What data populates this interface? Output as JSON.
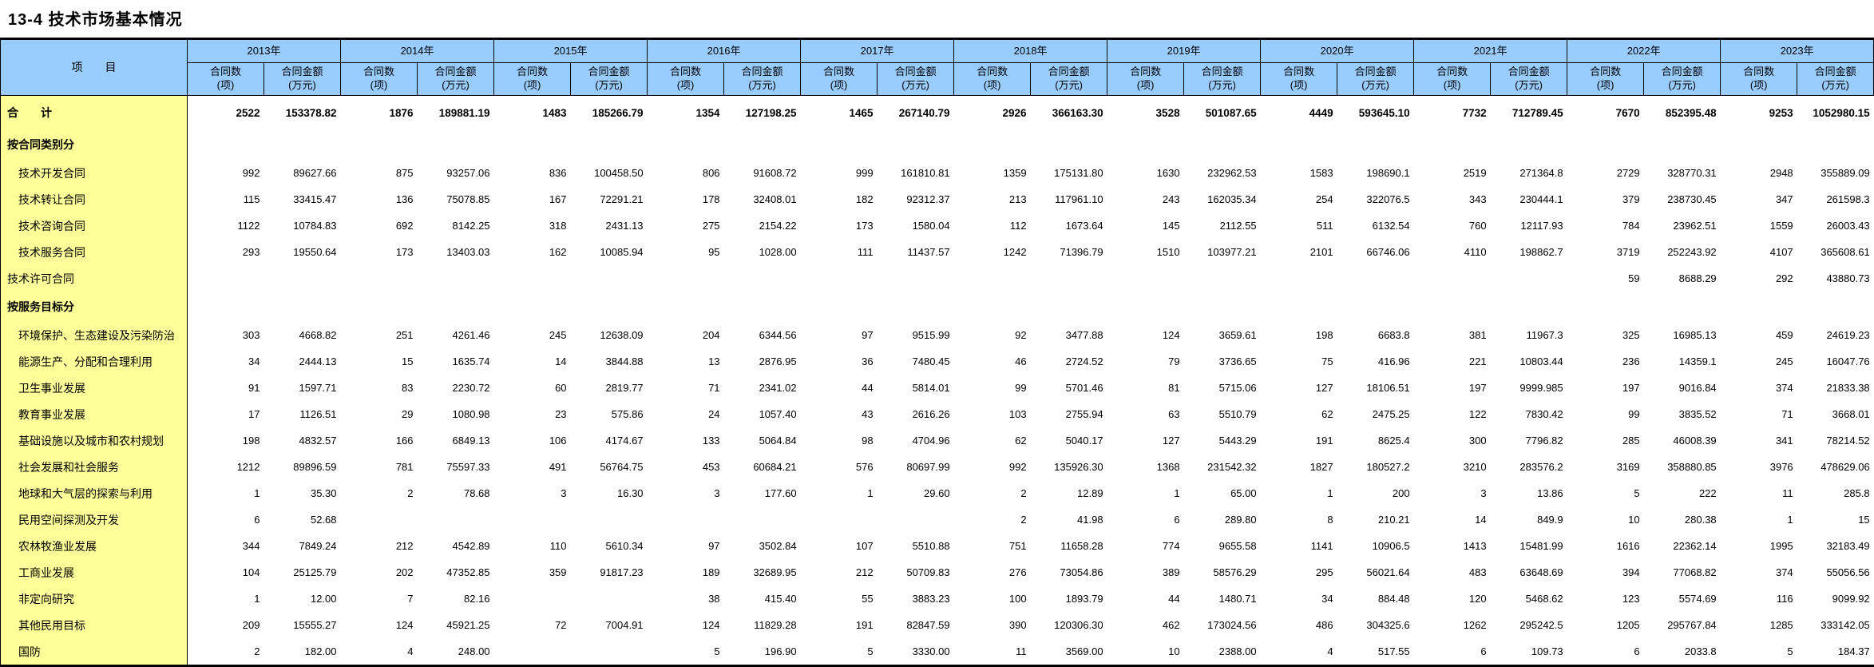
{
  "title": "13-4  技术市场基本情况",
  "colors": {
    "header_bg": "#99CCFF",
    "label_bg": "#FFFF99",
    "border": "#000000"
  },
  "table": {
    "item_header": "项　　目",
    "years": [
      "2013年",
      "2014年",
      "2015年",
      "2016年",
      "2017年",
      "2018年",
      "2019年",
      "2020年",
      "2021年",
      "2022年",
      "2023年"
    ],
    "count_label": "合同数",
    "count_unit": "(项)",
    "amount_label": "合同金额",
    "amount_unit": "(万元)",
    "rows": [
      {
        "label": "合　　计",
        "style": "total",
        "cells": [
          "2522",
          "153378.82",
          "1876",
          "189881.19",
          "1483",
          "185266.79",
          "1354",
          "127198.25",
          "1465",
          "267140.79",
          "2926",
          "366163.30",
          "3528",
          "501087.65",
          "4449",
          "593645.10",
          "7732",
          "712789.45",
          "7670",
          "852395.48",
          "9253",
          "1052980.15"
        ]
      },
      {
        "label": "按合同类别分",
        "style": "group",
        "cells": []
      },
      {
        "label": "技术开发合同",
        "style": "item",
        "cells": [
          "992",
          "89627.66",
          "875",
          "93257.06",
          "836",
          "100458.50",
          "806",
          "91608.72",
          "999",
          "161810.81",
          "1359",
          "175131.80",
          "1630",
          "232962.53",
          "1583",
          "198690.1",
          "2519",
          "271364.8",
          "2729",
          "328770.31",
          "2948",
          "355889.09"
        ]
      },
      {
        "label": "技术转让合同",
        "style": "item",
        "cells": [
          "115",
          "33415.47",
          "136",
          "75078.85",
          "167",
          "72291.21",
          "178",
          "32408.01",
          "182",
          "92312.37",
          "213",
          "117961.10",
          "243",
          "162035.34",
          "254",
          "322076.5",
          "343",
          "230444.1",
          "379",
          "238730.45",
          "347",
          "261598.3"
        ]
      },
      {
        "label": "技术咨询合同",
        "style": "item",
        "cells": [
          "1122",
          "10784.83",
          "692",
          "8142.25",
          "318",
          "2431.13",
          "275",
          "2154.22",
          "173",
          "1580.04",
          "112",
          "1673.64",
          "145",
          "2112.55",
          "511",
          "6132.54",
          "760",
          "12117.93",
          "784",
          "23962.51",
          "1559",
          "26003.43"
        ]
      },
      {
        "label": "技术服务合同",
        "style": "item",
        "cells": [
          "293",
          "19550.64",
          "173",
          "13403.03",
          "162",
          "10085.94",
          "95",
          "1028.00",
          "111",
          "11437.57",
          "1242",
          "71396.79",
          "1510",
          "103977.21",
          "2101",
          "66746.06",
          "4110",
          "198862.7",
          "3719",
          "252243.92",
          "4107",
          "365608.61"
        ]
      },
      {
        "label": "技术许可合同",
        "style": "flush",
        "cells": [
          "",
          "",
          "",
          "",
          "",
          "",
          "",
          "",
          "",
          "",
          "",
          "",
          "",
          "",
          "",
          "",
          "",
          "",
          "59",
          "8688.29",
          "292",
          "43880.73"
        ]
      },
      {
        "label": "按服务目标分",
        "style": "group",
        "cells": []
      },
      {
        "label": "环境保护、生态建设及污染防治",
        "style": "item",
        "cells": [
          "303",
          "4668.82",
          "251",
          "4261.46",
          "245",
          "12638.09",
          "204",
          "6344.56",
          "97",
          "9515.99",
          "92",
          "3477.88",
          "124",
          "3659.61",
          "198",
          "6683.8",
          "381",
          "11967.3",
          "325",
          "16985.13",
          "459",
          "24619.23"
        ]
      },
      {
        "label": "能源生产、分配和合理利用",
        "style": "item",
        "cells": [
          "34",
          "2444.13",
          "15",
          "1635.74",
          "14",
          "3844.88",
          "13",
          "2876.95",
          "36",
          "7480.45",
          "46",
          "2724.52",
          "79",
          "3736.65",
          "75",
          "416.96",
          "221",
          "10803.44",
          "236",
          "14359.1",
          "245",
          "16047.76"
        ]
      },
      {
        "label": "卫生事业发展",
        "style": "item",
        "cells": [
          "91",
          "1597.71",
          "83",
          "2230.72",
          "60",
          "2819.77",
          "71",
          "2341.02",
          "44",
          "5814.01",
          "99",
          "5701.46",
          "81",
          "5715.06",
          "127",
          "18106.51",
          "197",
          "9999.985",
          "197",
          "9016.84",
          "374",
          "21833.38"
        ]
      },
      {
        "label": "教育事业发展",
        "style": "item",
        "cells": [
          "17",
          "1126.51",
          "29",
          "1080.98",
          "23",
          "575.86",
          "24",
          "1057.40",
          "43",
          "2616.26",
          "103",
          "2755.94",
          "63",
          "5510.79",
          "62",
          "2475.25",
          "122",
          "7830.42",
          "99",
          "3835.52",
          "71",
          "3668.01"
        ]
      },
      {
        "label": "基础设施以及城市和农村规划",
        "style": "item",
        "cells": [
          "198",
          "4832.57",
          "166",
          "6849.13",
          "106",
          "4174.67",
          "133",
          "5064.84",
          "98",
          "4704.96",
          "62",
          "5040.17",
          "127",
          "5443.29",
          "191",
          "8625.4",
          "300",
          "7796.82",
          "285",
          "46008.39",
          "341",
          "78214.52"
        ]
      },
      {
        "label": "社会发展和社会服务",
        "style": "item",
        "cells": [
          "1212",
          "89896.59",
          "781",
          "75597.33",
          "491",
          "56764.75",
          "453",
          "60684.21",
          "576",
          "80697.99",
          "992",
          "135926.30",
          "1368",
          "231542.32",
          "1827",
          "180527.2",
          "3210",
          "283576.2",
          "3169",
          "358880.85",
          "3976",
          "478629.06"
        ]
      },
      {
        "label": "地球和大气层的探索与利用",
        "style": "item",
        "cells": [
          "1",
          "35.30",
          "2",
          "78.68",
          "3",
          "16.30",
          "3",
          "177.60",
          "1",
          "29.60",
          "2",
          "12.89",
          "1",
          "65.00",
          "1",
          "200",
          "3",
          "13.86",
          "5",
          "222",
          "11",
          "285.8"
        ]
      },
      {
        "label": "民用空间探测及开发",
        "style": "item",
        "cells": [
          "6",
          "52.68",
          "",
          "",
          "",
          "",
          "",
          "",
          "",
          "",
          "2",
          "41.98",
          "6",
          "289.80",
          "8",
          "210.21",
          "14",
          "849.9",
          "10",
          "280.38",
          "1",
          "15"
        ]
      },
      {
        "label": "农林牧渔业发展",
        "style": "item",
        "cells": [
          "344",
          "7849.24",
          "212",
          "4542.89",
          "110",
          "5610.34",
          "97",
          "3502.84",
          "107",
          "5510.88",
          "751",
          "11658.28",
          "774",
          "9655.58",
          "1141",
          "10906.5",
          "1413",
          "15481.99",
          "1616",
          "22362.14",
          "1995",
          "32183.49"
        ]
      },
      {
        "label": "工商业发展",
        "style": "item",
        "cells": [
          "104",
          "25125.79",
          "202",
          "47352.85",
          "359",
          "91817.23",
          "189",
          "32689.95",
          "212",
          "50709.83",
          "276",
          "73054.86",
          "389",
          "58576.29",
          "295",
          "56021.64",
          "483",
          "63648.69",
          "394",
          "77068.82",
          "374",
          "55056.56"
        ]
      },
      {
        "label": "非定向研究",
        "style": "item",
        "cells": [
          "1",
          "12.00",
          "7",
          "82.16",
          "",
          "",
          "38",
          "415.40",
          "55",
          "3883.23",
          "100",
          "1893.79",
          "44",
          "1480.71",
          "34",
          "884.48",
          "120",
          "5468.62",
          "123",
          "5574.69",
          "116",
          "9099.92"
        ]
      },
      {
        "label": "其他民用目标",
        "style": "item",
        "cells": [
          "209",
          "15555.27",
          "124",
          "45921.25",
          "72",
          "7004.91",
          "124",
          "11829.28",
          "191",
          "82847.59",
          "390",
          "120306.30",
          "462",
          "173024.56",
          "486",
          "304325.6",
          "1262",
          "295242.5",
          "1205",
          "295767.84",
          "1285",
          "333142.05"
        ]
      },
      {
        "label": "国防",
        "style": "item",
        "cells": [
          "2",
          "182.00",
          "4",
          "248.00",
          "",
          "",
          "5",
          "196.90",
          "5",
          "3330.00",
          "11",
          "3569.00",
          "10",
          "2388.00",
          "4",
          "517.55",
          "6",
          "109.73",
          "6",
          "2033.8",
          "5",
          "184.37"
        ]
      }
    ]
  }
}
